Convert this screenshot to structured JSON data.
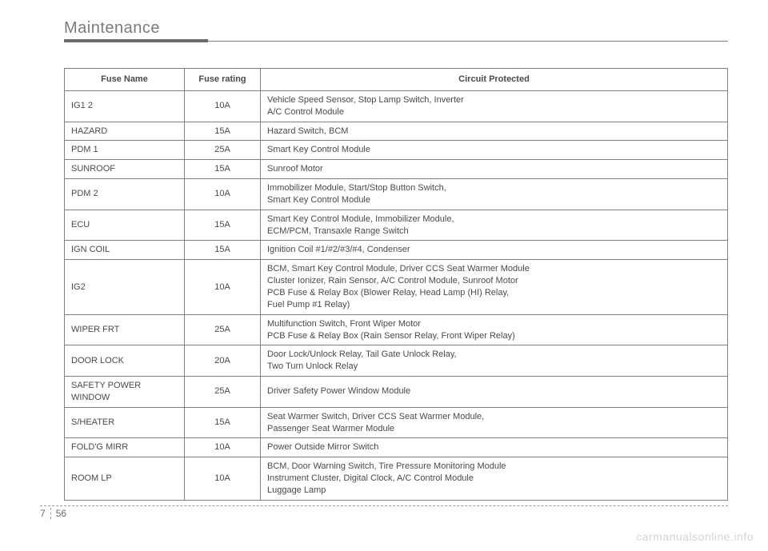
{
  "header": {
    "title": "Maintenance"
  },
  "table": {
    "columns": [
      "Fuse Name",
      "Fuse rating",
      "Circuit Protected"
    ],
    "rows": [
      {
        "name": "IG1 2",
        "rating": "10A",
        "circuit": "Vehicle Speed Sensor, Stop Lamp Switch, Inverter\nA/C Control Module"
      },
      {
        "name": "HAZARD",
        "rating": "15A",
        "circuit": "Hazard Switch, BCM"
      },
      {
        "name": "PDM 1",
        "rating": "25A",
        "circuit": "Smart Key Control Module"
      },
      {
        "name": "SUNROOF",
        "rating": "15A",
        "circuit": "Sunroof Motor"
      },
      {
        "name": "PDM 2",
        "rating": "10A",
        "circuit": "Immobilizer Module, Start/Stop Button Switch,\nSmart Key Control Module"
      },
      {
        "name": "ECU",
        "rating": "15A",
        "circuit": "Smart Key Control Module, Immobilizer Module,\nECM/PCM, Transaxle Range Switch"
      },
      {
        "name": "IGN COIL",
        "rating": "15A",
        "circuit": "Ignition Coil #1/#2/#3/#4, Condenser"
      },
      {
        "name": "IG2",
        "rating": "10A",
        "circuit": "BCM, Smart Key Control Module, Driver CCS Seat Warmer Module\nCluster Ionizer, Rain Sensor, A/C Control Module, Sunroof Motor\nPCB Fuse & Relay Box (Blower Relay, Head Lamp (HI) Relay,\nFuel Pump #1 Relay)"
      },
      {
        "name": "WIPER FRT",
        "rating": "25A",
        "circuit": "Multifunction Switch, Front Wiper Motor\nPCB Fuse & Relay Box (Rain Sensor Relay, Front Wiper Relay)"
      },
      {
        "name": "DOOR LOCK",
        "rating": "20A",
        "circuit": "Door Lock/Unlock Relay, Tail Gate Unlock Relay,\nTwo Turn Unlock Relay"
      },
      {
        "name": "SAFETY POWER WINDOW",
        "rating": "25A",
        "circuit": "Driver Safety Power Window Module"
      },
      {
        "name": "S/HEATER",
        "rating": "15A",
        "circuit": "Seat Warmer Switch, Driver CCS Seat Warmer Module,\nPassenger Seat Warmer Module"
      },
      {
        "name": "FOLD'G MIRR",
        "rating": "10A",
        "circuit": "Power Outside Mirror Switch"
      },
      {
        "name": "ROOM LP",
        "rating": "10A",
        "circuit": "BCM, Door Warning Switch, Tire Pressure Monitoring Module\nInstrument Cluster, Digital Clock, A/C Control Module\nLuggage Lamp"
      }
    ]
  },
  "footer": {
    "section": "7",
    "page": "56"
  },
  "watermark": "carmanualsonline.info",
  "colors": {
    "text": "#4a4a4a",
    "header_text": "#7a7a7a",
    "rule": "#808080",
    "watermark": "#d4d4d4"
  }
}
